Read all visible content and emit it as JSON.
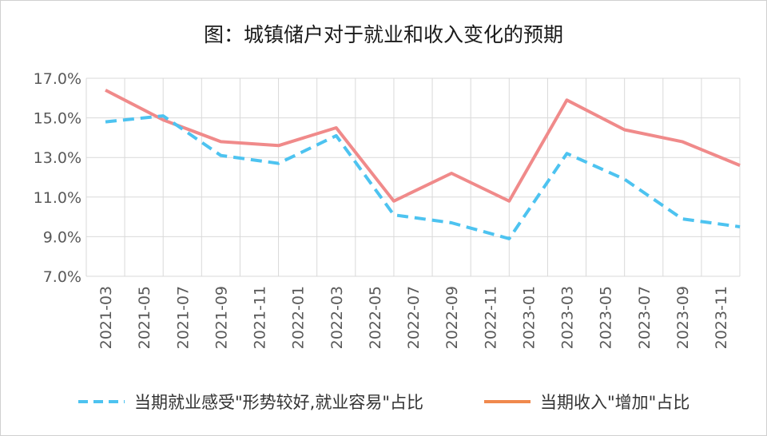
{
  "chart_data": {
    "type": "line",
    "title": "图：城镇储户对于就业和收入变化的预期",
    "x": [
      "2021-03",
      "2021-05",
      "2021-07",
      "2021-09",
      "2021-11",
      "2022-01",
      "2022-03",
      "2022-05",
      "2022-07",
      "2022-09",
      "2022-11",
      "2023-01",
      "2023-03",
      "2023-05",
      "2023-07",
      "2023-09",
      "2023-11"
    ],
    "y_ticks": [
      "17.0%",
      "15.0%",
      "13.0%",
      "11.0%",
      "9.0%",
      "7.0%"
    ],
    "ylim": [
      7.0,
      17.0
    ],
    "y_unit": "%",
    "grid": true,
    "legend_position": "bottom",
    "series": [
      {
        "name": "当期就业感受\"形势较好,就业容易\"占比",
        "color": "#4dc3f0",
        "style": "dashed",
        "points": [
          {
            "x": "2021-03",
            "y": 14.8
          },
          {
            "x": "2021-06",
            "y": 15.1
          },
          {
            "x": "2021-09",
            "y": 13.1
          },
          {
            "x": "2021-12",
            "y": 12.7
          },
          {
            "x": "2022-03",
            "y": 14.1
          },
          {
            "x": "2022-06",
            "y": 10.1
          },
          {
            "x": "2022-09",
            "y": 9.7
          },
          {
            "x": "2022-12",
            "y": 8.9
          },
          {
            "x": "2023-03",
            "y": 13.2
          },
          {
            "x": "2023-06",
            "y": 11.9
          },
          {
            "x": "2023-09",
            "y": 9.9
          },
          {
            "x": "2023-12",
            "y": 9.5
          }
        ]
      },
      {
        "name": "当期收入\"增加\"占比",
        "color": "#f08a8a",
        "legend_color": "#f0894d",
        "style": "solid",
        "points": [
          {
            "x": "2021-03",
            "y": 16.4
          },
          {
            "x": "2021-06",
            "y": 14.9
          },
          {
            "x": "2021-09",
            "y": 13.8
          },
          {
            "x": "2021-12",
            "y": 13.6
          },
          {
            "x": "2022-03",
            "y": 14.5
          },
          {
            "x": "2022-06",
            "y": 10.8
          },
          {
            "x": "2022-09",
            "y": 12.2
          },
          {
            "x": "2022-12",
            "y": 10.8
          },
          {
            "x": "2023-03",
            "y": 15.9
          },
          {
            "x": "2023-06",
            "y": 14.4
          },
          {
            "x": "2023-09",
            "y": 13.8
          },
          {
            "x": "2023-12",
            "y": 12.6
          }
        ]
      }
    ]
  }
}
